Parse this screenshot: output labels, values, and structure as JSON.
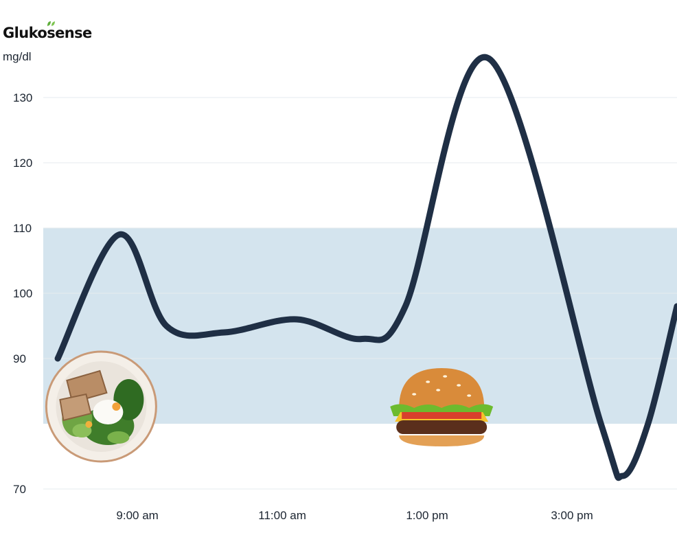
{
  "brand": {
    "name": "Glukosense"
  },
  "chart_data": {
    "type": "line",
    "ylabel": "mg/dl",
    "ylim": [
      70,
      140
    ],
    "yticks": [
      70,
      90,
      100,
      110,
      120,
      130
    ],
    "xlim": [
      "8:00 am",
      "4:40 pm"
    ],
    "xticks": [
      {
        "label": "9:00 am",
        "t": 9.3
      },
      {
        "label": "11:00 am",
        "t": 11.3
      },
      {
        "label": "1:00 pm",
        "t": 13.3
      },
      {
        "label": "3:00 pm",
        "t": 15.3
      }
    ],
    "target_range": [
      80,
      110
    ],
    "grid": true,
    "series": [
      {
        "color": "#1f2f45",
        "points": [
          {
            "t": 8.2,
            "v": 90
          },
          {
            "t": 9.05,
            "v": 109
          },
          {
            "t": 9.7,
            "v": 95
          },
          {
            "t": 10.5,
            "v": 94
          },
          {
            "t": 11.5,
            "v": 96
          },
          {
            "t": 12.4,
            "v": 93
          },
          {
            "t": 13.0,
            "v": 98
          },
          {
            "t": 14.15,
            "v": 136
          },
          {
            "t": 15.7,
            "v": 80
          },
          {
            "t": 16.0,
            "v": 72
          },
          {
            "t": 16.35,
            "v": 80
          },
          {
            "t": 16.75,
            "v": 98
          }
        ]
      }
    ]
  },
  "annotations": [
    {
      "icon": "salad-plate-icon",
      "t": 8.8
    },
    {
      "icon": "burger-icon",
      "t": 13.5
    }
  ]
}
